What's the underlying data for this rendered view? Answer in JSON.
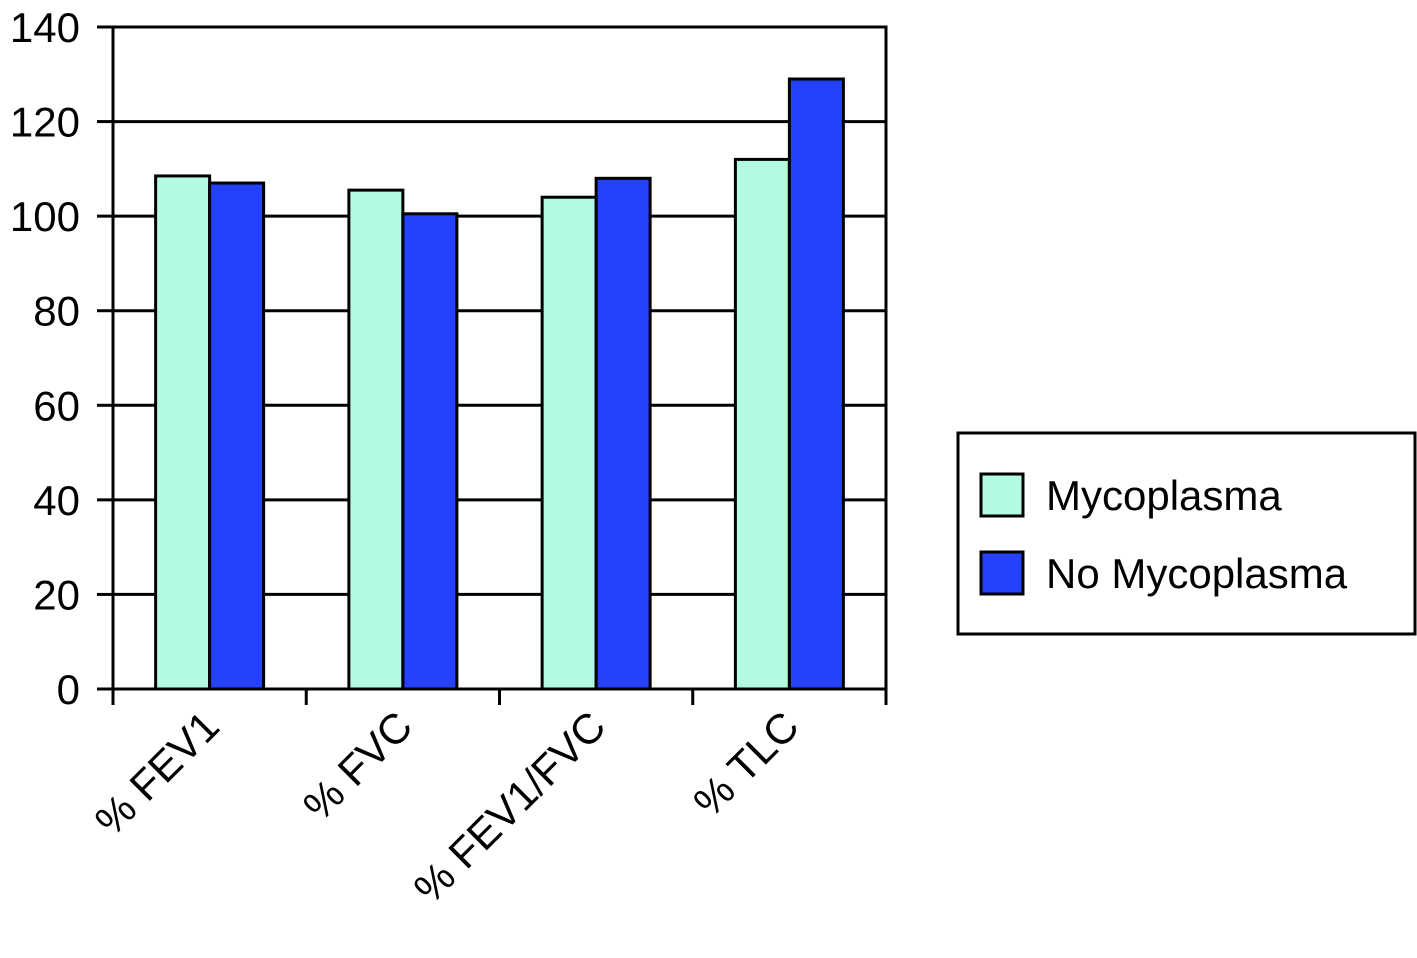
{
  "chart_data": {
    "type": "bar",
    "title": "",
    "xlabel": "",
    "ylabel": "",
    "categories": [
      "% FEV1",
      "% FVC",
      "% FEV1/FVC",
      "% TLC"
    ],
    "series": [
      {
        "name": "Mycoplasma",
        "values": [
          108.5,
          105.5,
          104,
          112
        ],
        "color": "#b3fbe0"
      },
      {
        "name": "No Mycoplasma",
        "values": [
          107,
          100.5,
          108,
          129
        ],
        "color": "#2441fb"
      }
    ],
    "ylim": [
      0,
      140
    ],
    "yticks": [
      0,
      20,
      40,
      60,
      80,
      100,
      120,
      140
    ],
    "grid": true,
    "legend_position": "right"
  }
}
